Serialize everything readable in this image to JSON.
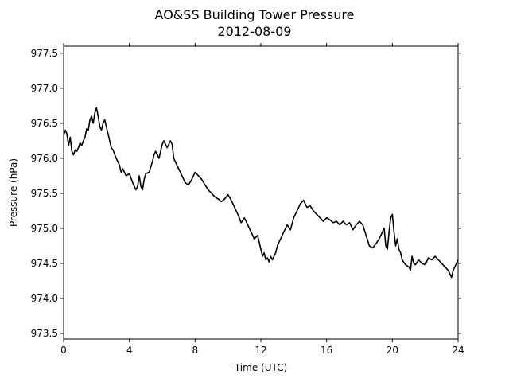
{
  "chart_data": {
    "type": "line",
    "title": "AO&SS Building Tower Pressure",
    "subtitle": "2012-08-09",
    "xlabel": "Time (UTC)",
    "ylabel": "Pressure (hPa)",
    "xlim": [
      0,
      24
    ],
    "ylim": [
      973.42,
      977.6
    ],
    "xticks": [
      0,
      4,
      8,
      12,
      16,
      20,
      24
    ],
    "yticks": [
      973.5,
      974.0,
      974.5,
      975.0,
      975.5,
      976.0,
      976.5,
      977.0,
      977.5
    ],
    "ytick_labels": [
      "973.5",
      "974.0",
      "974.5",
      "975.0",
      "975.5",
      "976.0",
      "976.5",
      "977.0",
      "977.5"
    ],
    "grid": false,
    "line_color": "#000000",
    "series": [
      {
        "x": [
          0.0,
          0.1,
          0.2,
          0.3,
          0.4,
          0.5,
          0.6,
          0.7,
          0.8,
          0.9,
          1.0,
          1.1,
          1.2,
          1.3,
          1.4,
          1.5,
          1.6,
          1.7,
          1.8,
          1.9,
          2.0,
          2.1,
          2.2,
          2.3,
          2.4,
          2.5,
          2.6,
          2.7,
          2.8,
          2.9,
          3.0,
          3.2,
          3.4,
          3.5,
          3.6,
          3.8,
          4.0,
          4.2,
          4.4,
          4.5,
          4.6,
          4.7,
          4.8,
          4.9,
          5.0,
          5.2,
          5.4,
          5.5,
          5.6,
          5.8,
          6.0,
          6.1,
          6.2,
          6.3,
          6.4,
          6.5,
          6.6,
          6.7,
          6.8,
          7.0,
          7.2,
          7.4,
          7.6,
          7.8,
          8.0,
          8.2,
          8.4,
          8.6,
          8.8,
          9.0,
          9.2,
          9.4,
          9.6,
          9.8,
          10.0,
          10.2,
          10.4,
          10.6,
          10.8,
          11.0,
          11.2,
          11.4,
          11.6,
          11.8,
          12.0,
          12.1,
          12.2,
          12.3,
          12.4,
          12.5,
          12.6,
          12.7,
          12.8,
          12.9,
          13.0,
          13.2,
          13.4,
          13.6,
          13.8,
          14.0,
          14.2,
          14.4,
          14.6,
          14.8,
          15.0,
          15.2,
          15.4,
          15.6,
          15.8,
          16.0,
          16.2,
          16.4,
          16.6,
          16.8,
          17.0,
          17.2,
          17.4,
          17.6,
          17.8,
          18.0,
          18.2,
          18.4,
          18.6,
          18.8,
          19.0,
          19.2,
          19.4,
          19.5,
          19.6,
          19.7,
          19.8,
          19.9,
          20.0,
          20.1,
          20.2,
          20.3,
          20.4,
          20.5,
          20.6,
          20.8,
          21.0,
          21.1,
          21.2,
          21.3,
          21.4,
          21.6,
          21.8,
          22.0,
          22.2,
          22.4,
          22.6,
          22.8,
          23.0,
          23.2,
          23.4,
          23.5,
          23.6,
          23.7,
          23.8,
          24.0
        ],
        "y": [
          976.32,
          976.4,
          976.35,
          976.18,
          976.3,
          976.1,
          976.05,
          976.12,
          976.1,
          976.15,
          976.22,
          976.18,
          976.25,
          976.3,
          976.42,
          976.4,
          976.55,
          976.6,
          976.5,
          976.65,
          976.72,
          976.6,
          976.45,
          976.4,
          976.5,
          976.55,
          976.45,
          976.35,
          976.25,
          976.15,
          976.12,
          976.0,
          975.9,
          975.8,
          975.85,
          975.75,
          975.78,
          975.65,
          975.55,
          975.6,
          975.75,
          975.6,
          975.55,
          975.7,
          975.78,
          975.8,
          975.95,
          976.05,
          976.1,
          976.0,
          976.2,
          976.25,
          976.2,
          976.15,
          976.2,
          976.25,
          976.2,
          976.0,
          975.95,
          975.85,
          975.75,
          975.65,
          975.62,
          975.7,
          975.8,
          975.75,
          975.7,
          975.62,
          975.55,
          975.5,
          975.45,
          975.42,
          975.38,
          975.42,
          975.48,
          975.4,
          975.3,
          975.2,
          975.08,
          975.15,
          975.05,
          974.95,
          974.85,
          974.9,
          974.7,
          974.6,
          974.65,
          974.55,
          974.58,
          974.52,
          974.6,
          974.55,
          974.6,
          974.65,
          974.75,
          974.85,
          974.95,
          975.05,
          974.98,
          975.15,
          975.25,
          975.35,
          975.4,
          975.3,
          975.32,
          975.25,
          975.2,
          975.15,
          975.1,
          975.15,
          975.12,
          975.08,
          975.1,
          975.05,
          975.1,
          975.05,
          975.08,
          974.98,
          975.05,
          975.1,
          975.05,
          974.9,
          974.75,
          974.72,
          974.78,
          974.85,
          974.95,
          975.0,
          974.75,
          974.7,
          974.95,
          975.15,
          975.2,
          974.95,
          974.75,
          974.85,
          974.7,
          974.65,
          974.55,
          974.48,
          974.45,
          974.4,
          974.6,
          974.5,
          974.48,
          974.55,
          974.5,
          974.48,
          974.58,
          974.55,
          974.6,
          974.55,
          974.5,
          974.45,
          974.4,
          974.35,
          974.3,
          974.4,
          974.45,
          974.55
        ]
      }
    ]
  }
}
